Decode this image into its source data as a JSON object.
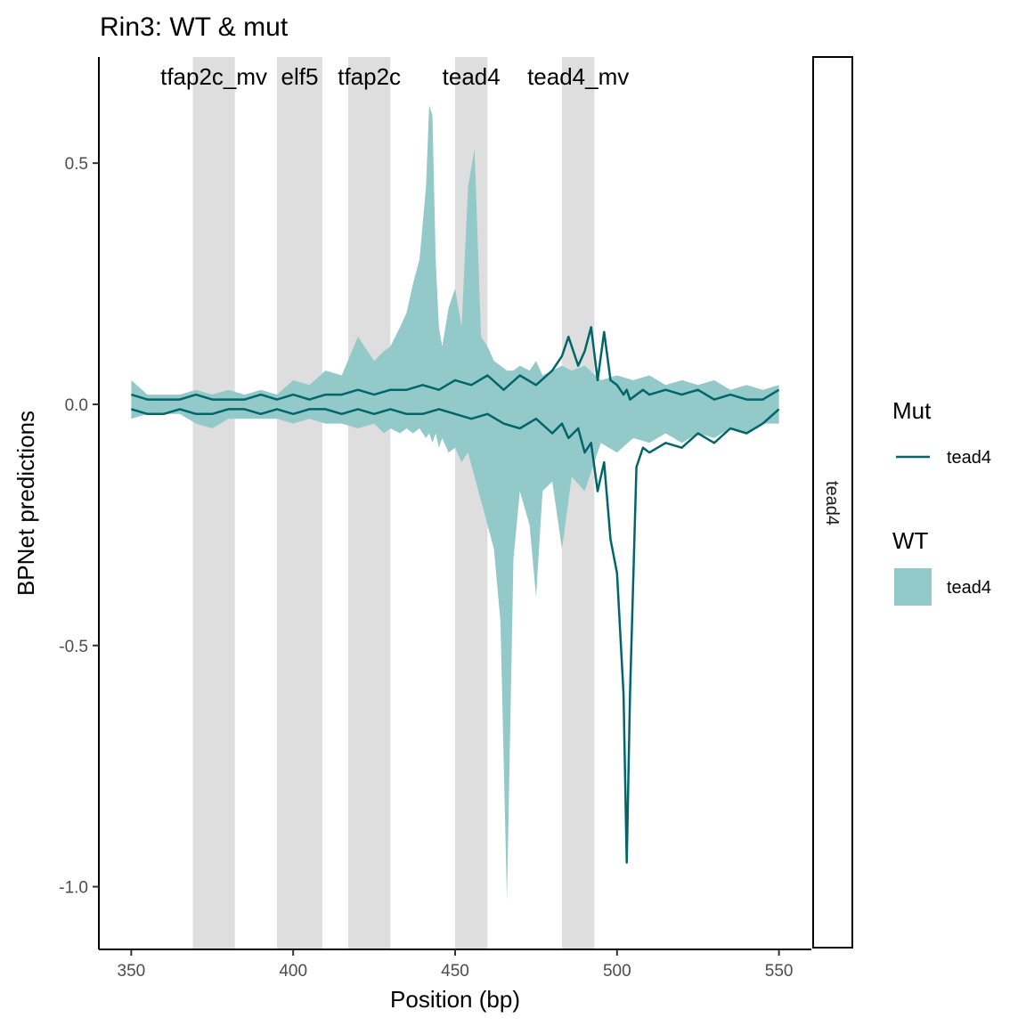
{
  "chart_data": {
    "type": "area",
    "title": "Rin3: WT & mut",
    "xlabel": "Position (bp)",
    "ylabel": "BPNet predictions",
    "xlim": [
      340,
      560
    ],
    "ylim": [
      -1.13,
      0.72
    ],
    "x_ticks": [
      350,
      400,
      450,
      500,
      550
    ],
    "x_tick_labels": [
      "350",
      "400",
      "450",
      "500",
      "550"
    ],
    "y_ticks": [
      0.5,
      0.0,
      -0.5,
      -1.0
    ],
    "y_tick_labels": [
      "0.5",
      "0.0",
      "-0.5",
      "-1.0"
    ],
    "grid": false,
    "facet_label": "tead4",
    "motif_regions": [
      {
        "name": "tfap2c_mv",
        "start": 369,
        "end": 382
      },
      {
        "name": "elf5",
        "start": 395,
        "end": 409
      },
      {
        "name": "tfap2c",
        "start": 417,
        "end": 430
      },
      {
        "name": "tead4",
        "start": 450,
        "end": 460
      },
      {
        "name": "tead4_mv",
        "start": 483,
        "end": 493
      }
    ],
    "colors": {
      "wt_fill": "#93C9C8",
      "mut_line": "#00666A",
      "motif_band": "#DEDEDE"
    },
    "legend": {
      "placement": "right",
      "groups": [
        {
          "title": "Mut",
          "label": "tead4",
          "kind": "line"
        },
        {
          "title": "WT",
          "label": "tead4",
          "kind": "fill"
        }
      ]
    },
    "wt": {
      "name": "tead4",
      "x": [
        350,
        355,
        360,
        365,
        370,
        375,
        380,
        385,
        390,
        395,
        400,
        405,
        410,
        415,
        420,
        425,
        428,
        430,
        433,
        435,
        437,
        439,
        441,
        442,
        443,
        444,
        445,
        446,
        448,
        450,
        452,
        454,
        456,
        458,
        460,
        462,
        464,
        466,
        468,
        470,
        473,
        475,
        477,
        480,
        483,
        486,
        490,
        495,
        500,
        505,
        510,
        515,
        520,
        525,
        530,
        535,
        540,
        545,
        550
      ],
      "upper": [
        0.05,
        0.02,
        0.02,
        0.02,
        0.03,
        0.02,
        0.03,
        0.02,
        0.03,
        0.02,
        0.05,
        0.04,
        0.07,
        0.06,
        0.14,
        0.09,
        0.11,
        0.12,
        0.16,
        0.19,
        0.25,
        0.3,
        0.45,
        0.62,
        0.6,
        0.3,
        0.16,
        0.12,
        0.2,
        0.24,
        0.16,
        0.45,
        0.53,
        0.14,
        0.12,
        0.09,
        0.08,
        0.07,
        0.07,
        0.08,
        0.07,
        0.09,
        0.06,
        0.07,
        0.08,
        0.07,
        0.08,
        0.05,
        0.06,
        0.05,
        0.06,
        0.04,
        0.05,
        0.04,
        0.05,
        0.03,
        0.04,
        0.03,
        0.04
      ],
      "lower": [
        -0.03,
        -0.02,
        -0.02,
        -0.02,
        -0.04,
        -0.05,
        -0.03,
        -0.03,
        -0.03,
        -0.03,
        -0.04,
        -0.03,
        -0.04,
        -0.04,
        -0.05,
        -0.04,
        -0.06,
        -0.05,
        -0.06,
        -0.05,
        -0.06,
        -0.05,
        -0.07,
        -0.06,
        -0.08,
        -0.06,
        -0.09,
        -0.07,
        -0.1,
        -0.09,
        -0.12,
        -0.1,
        -0.15,
        -0.2,
        -0.25,
        -0.3,
        -0.45,
        -1.03,
        -0.32,
        -0.18,
        -0.25,
        -0.4,
        -0.18,
        -0.16,
        -0.3,
        -0.15,
        -0.18,
        -0.08,
        -0.1,
        -0.07,
        -0.08,
        -0.06,
        -0.08,
        -0.06,
        -0.07,
        -0.05,
        -0.06,
        -0.04,
        -0.04
      ]
    },
    "mut": {
      "name": "tead4",
      "x": [
        350,
        355,
        360,
        365,
        370,
        375,
        380,
        385,
        390,
        395,
        400,
        405,
        410,
        415,
        420,
        425,
        430,
        435,
        440,
        445,
        450,
        455,
        460,
        465,
        470,
        475,
        480,
        483,
        485,
        488,
        490,
        492,
        494,
        496,
        498,
        500,
        502,
        503,
        504,
        506,
        508,
        510,
        515,
        520,
        525,
        530,
        535,
        540,
        545,
        550
      ],
      "upper": [
        0.02,
        0.01,
        0.01,
        0.01,
        0.02,
        0.01,
        0.01,
        0.01,
        0.02,
        0.01,
        0.02,
        0.01,
        0.02,
        0.02,
        0.03,
        0.02,
        0.03,
        0.03,
        0.04,
        0.03,
        0.05,
        0.04,
        0.06,
        0.03,
        0.06,
        0.04,
        0.07,
        0.1,
        0.14,
        0.08,
        0.11,
        0.16,
        0.05,
        0.15,
        0.05,
        0.04,
        0.02,
        0.03,
        0.01,
        0.02,
        0.03,
        0.02,
        0.03,
        0.02,
        0.03,
        0.01,
        0.02,
        0.01,
        0.01,
        0.03
      ],
      "lower": [
        -0.01,
        -0.02,
        -0.02,
        -0.01,
        -0.02,
        -0.02,
        -0.01,
        -0.01,
        -0.02,
        -0.01,
        -0.02,
        -0.01,
        -0.01,
        -0.02,
        -0.01,
        -0.02,
        -0.01,
        -0.02,
        -0.02,
        -0.01,
        -0.02,
        -0.03,
        -0.02,
        -0.04,
        -0.05,
        -0.03,
        -0.06,
        -0.04,
        -0.07,
        -0.05,
        -0.1,
        -0.08,
        -0.18,
        -0.12,
        -0.28,
        -0.35,
        -0.6,
        -0.95,
        -0.6,
        -0.13,
        -0.09,
        -0.1,
        -0.08,
        -0.09,
        -0.06,
        -0.08,
        -0.05,
        -0.06,
        -0.04,
        -0.01
      ]
    }
  }
}
